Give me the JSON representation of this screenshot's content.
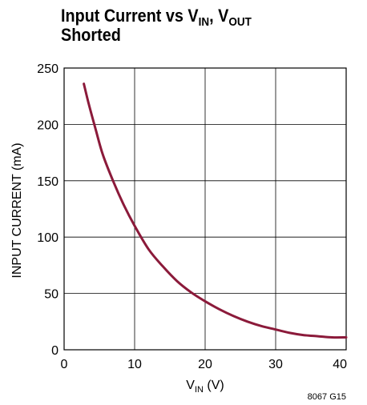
{
  "chart_data": {
    "type": "line",
    "title": {
      "line1_prefix": "Input Current vs V",
      "sub1": "IN",
      "sep": ", V",
      "sub2": "OUT",
      "line2": "Shorted"
    },
    "xlabel": {
      "main": "V",
      "sub": "IN",
      "unit": " (V)"
    },
    "ylabel": "INPUT CURRENT (mA)",
    "xlim": [
      0,
      40
    ],
    "ylim": [
      0,
      250
    ],
    "x_ticks": [
      "0",
      "10",
      "20",
      "30",
      "40"
    ],
    "y_ticks": [
      "0",
      "50",
      "100",
      "150",
      "200",
      "250"
    ],
    "grid": true,
    "series": [
      {
        "color": "#8b1a3a",
        "x": [
          2.8,
          3.5,
          4.5,
          5.5,
          7,
          8.5,
          10,
          12,
          14,
          16,
          18,
          20,
          22,
          24,
          26,
          28,
          30,
          32,
          34,
          36,
          38,
          40
        ],
        "y": [
          236,
          218,
          195,
          173,
          149,
          128,
          110,
          89,
          74,
          61,
          51,
          43,
          36,
          30,
          25,
          21,
          18,
          15,
          13,
          12,
          11,
          11
        ]
      }
    ],
    "figure_code": "8067 G15"
  },
  "colors": {
    "curve": "#8b1a3a",
    "grid": "#000000"
  }
}
